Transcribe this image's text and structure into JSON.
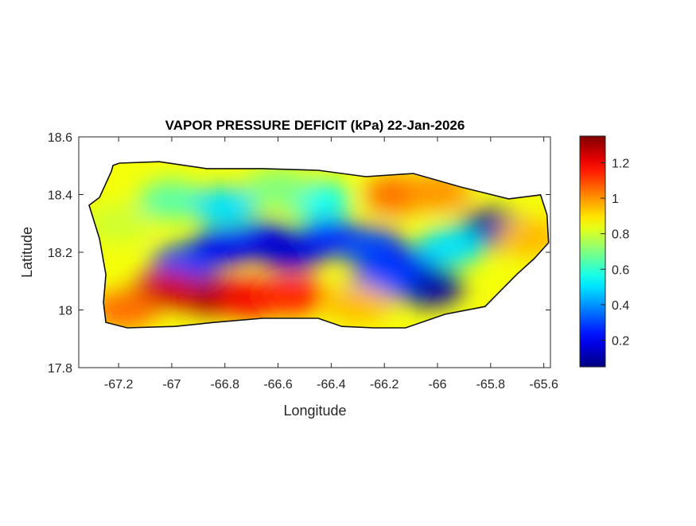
{
  "chart_data": {
    "type": "heatmap",
    "title": "VAPOR PRESSURE DEFICIT (kPa) 22-Jan-2026",
    "xlabel": "Longitude",
    "ylabel": "Latitude",
    "xlim": [
      -67.35,
      -65.575
    ],
    "ylim": [
      17.8,
      18.6
    ],
    "xticks": [
      -67.2,
      -67,
      -66.8,
      -66.6,
      -66.4,
      -66.2,
      -66,
      -65.8,
      -65.6
    ],
    "xtick_labels": [
      "-67.2",
      "-67",
      "-66.8",
      "-66.6",
      "-66.4",
      "-66.2",
      "-66",
      "-65.8",
      "-65.6"
    ],
    "yticks": [
      17.8,
      18,
      18.2,
      18.4,
      18.6
    ],
    "ytick_labels": [
      "17.8",
      "18",
      "18.2",
      "18.4",
      "18.6"
    ],
    "colorbar": {
      "colormap": "jet",
      "clim": [
        0.05,
        1.35
      ],
      "ticks": [
        0.2,
        0.4,
        0.6,
        0.8,
        1,
        1.2
      ],
      "tick_labels": [
        "0.2",
        "0.4",
        "0.6",
        "0.8",
        "1",
        "1.2"
      ],
      "placement": "right"
    },
    "base_value": 0.85,
    "island_outline_lonlat": [
      [
        -67.221,
        18.501
      ],
      [
        -67.197,
        18.509
      ],
      [
        -67.047,
        18.514
      ],
      [
        -66.868,
        18.49
      ],
      [
        -66.659,
        18.49
      ],
      [
        -66.449,
        18.484
      ],
      [
        -66.27,
        18.462
      ],
      [
        -66.091,
        18.473
      ],
      [
        -65.911,
        18.426
      ],
      [
        -65.732,
        18.385
      ],
      [
        -65.612,
        18.399
      ],
      [
        -65.588,
        18.33
      ],
      [
        -65.582,
        18.233
      ],
      [
        -65.636,
        18.178
      ],
      [
        -65.702,
        18.123
      ],
      [
        -65.821,
        18.012
      ],
      [
        -65.971,
        17.985
      ],
      [
        -66.12,
        17.938
      ],
      [
        -66.24,
        17.938
      ],
      [
        -66.36,
        17.943
      ],
      [
        -66.449,
        17.971
      ],
      [
        -66.659,
        17.971
      ],
      [
        -66.838,
        17.957
      ],
      [
        -66.988,
        17.943
      ],
      [
        -67.167,
        17.938
      ],
      [
        -67.248,
        17.957
      ],
      [
        -67.257,
        18.026
      ],
      [
        -67.248,
        18.123
      ],
      [
        -67.272,
        18.247
      ],
      [
        -67.311,
        18.363
      ],
      [
        -67.272,
        18.39
      ],
      [
        -67.227,
        18.481
      ]
    ],
    "field_samples": [
      {
        "lon": -67.2,
        "lat": 18.3,
        "value": 0.8
      },
      {
        "lon": -67.0,
        "lat": 18.38,
        "value": 0.65
      },
      {
        "lon": -66.8,
        "lat": 18.36,
        "value": 0.5
      },
      {
        "lon": -66.45,
        "lat": 18.38,
        "value": 0.55
      },
      {
        "lon": -66.6,
        "lat": 18.42,
        "value": 0.7
      },
      {
        "lon": -66.95,
        "lat": 18.16,
        "value": 0.3
      },
      {
        "lon": -66.8,
        "lat": 18.22,
        "value": 0.2
      },
      {
        "lon": -66.65,
        "lat": 18.24,
        "value": 0.2
      },
      {
        "lon": -66.55,
        "lat": 18.2,
        "value": 0.15
      },
      {
        "lon": -66.4,
        "lat": 18.25,
        "value": 0.25
      },
      {
        "lon": -66.25,
        "lat": 18.22,
        "value": 0.3
      },
      {
        "lon": -66.12,
        "lat": 18.15,
        "value": 0.2
      },
      {
        "lon": -66.03,
        "lat": 18.08,
        "value": 0.1
      },
      {
        "lon": -66.2,
        "lat": 18.1,
        "value": 0.3
      },
      {
        "lon": -65.8,
        "lat": 18.28,
        "value": 0.1
      },
      {
        "lon": -65.95,
        "lat": 18.22,
        "value": 0.5
      },
      {
        "lon": -66.85,
        "lat": 18.05,
        "value": 1.3
      },
      {
        "lon": -67.02,
        "lat": 18.07,
        "value": 1.25
      },
      {
        "lon": -66.7,
        "lat": 18.04,
        "value": 1.2
      },
      {
        "lon": -66.55,
        "lat": 18.05,
        "value": 1.15
      },
      {
        "lon": -67.18,
        "lat": 18.0,
        "value": 1.05
      },
      {
        "lon": -66.3,
        "lat": 18.02,
        "value": 0.95
      },
      {
        "lon": -66.15,
        "lat": 18.4,
        "value": 1.05
      },
      {
        "lon": -66.0,
        "lat": 18.41,
        "value": 1.0
      },
      {
        "lon": -65.65,
        "lat": 18.25,
        "value": 0.95
      }
    ]
  }
}
